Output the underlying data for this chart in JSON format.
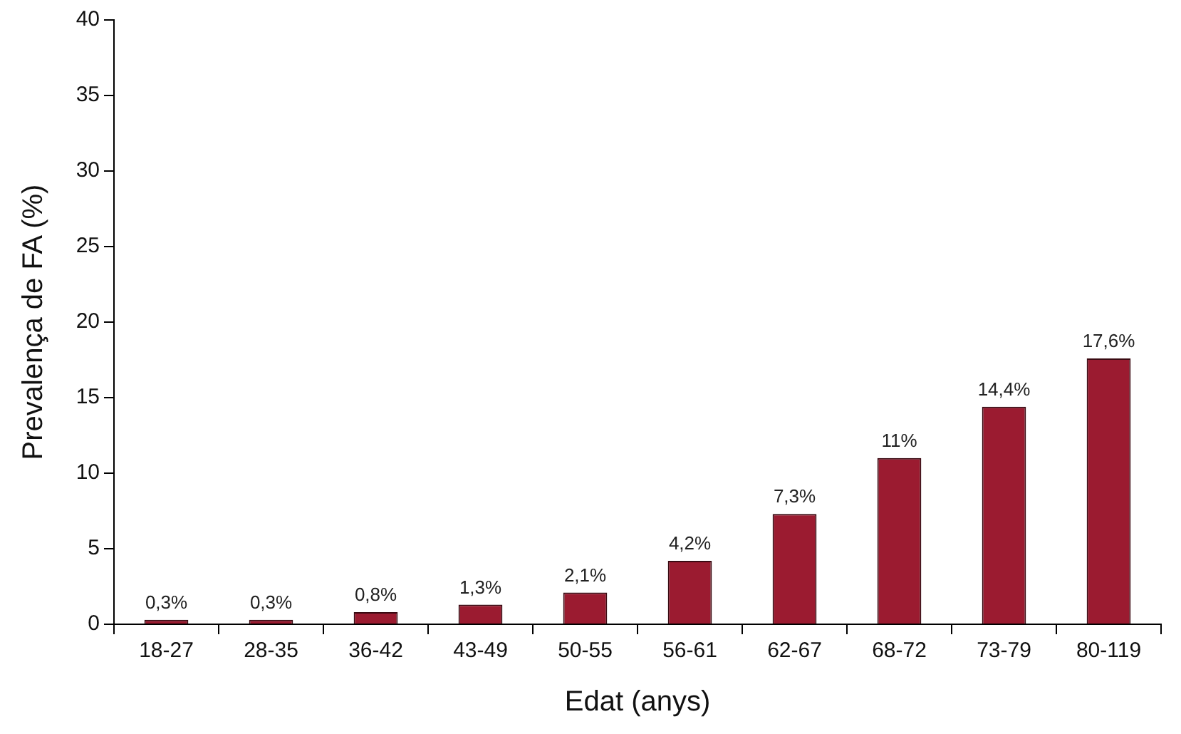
{
  "chart_data": {
    "type": "bar",
    "xlabel": "Edat (anys)",
    "ylabel": "Prevalença de FA (%)",
    "categories": [
      "18-27",
      "28-35",
      "36-42",
      "43-49",
      "50-55",
      "56-61",
      "62-67",
      "68-72",
      "73-79",
      "80-119"
    ],
    "values": [
      0.3,
      0.3,
      0.8,
      1.3,
      2.1,
      4.2,
      7.3,
      11,
      14.4,
      17.6
    ],
    "value_labels": [
      "0,3%",
      "0,3%",
      "0,8%",
      "1,3%",
      "2,1%",
      "4,2%",
      "7,3%",
      "11%",
      "14,4%",
      "17,6%"
    ],
    "color": "#9b1b30",
    "ylim": [
      0,
      40
    ],
    "yticks": [
      0,
      5,
      10,
      15,
      20,
      25,
      30,
      35,
      40
    ],
    "legend": false
  }
}
